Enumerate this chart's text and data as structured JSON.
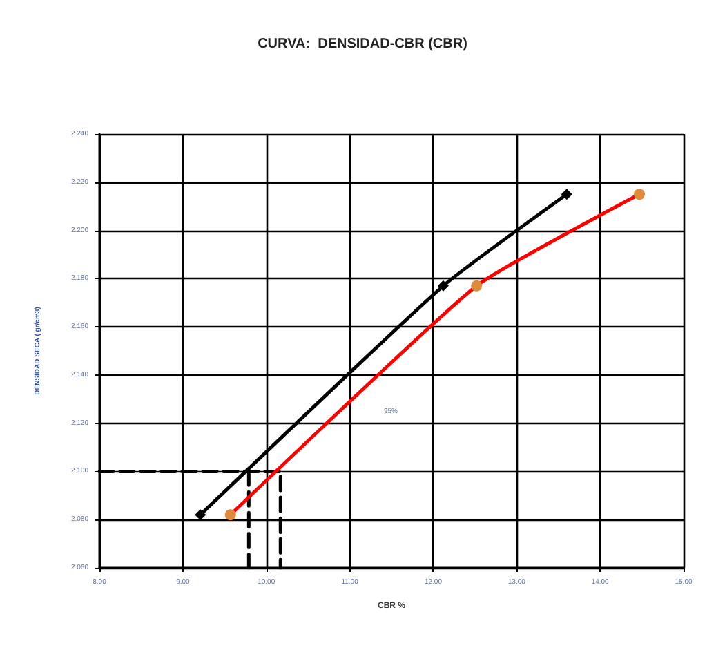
{
  "chart_data": {
    "type": "line",
    "title": "CURVA:  DENSIDAD-CBR (CBR)",
    "xlabel": "CBR %",
    "ylabel": "DENSIDAD SECA ( gr/cm3)",
    "annotations": [
      "95%"
    ],
    "series": [
      {
        "color": "#000000",
        "marker": "diamond",
        "x": [
          9.21,
          12.12,
          13.6
        ],
        "values": [
          2.082,
          2.177,
          2.215
        ]
      },
      {
        "color": "#ff0000",
        "marker": "circle",
        "colors": [
          "#e08a3c",
          "#e08a3c",
          "#e08a3c"
        ],
        "x": [
          9.57,
          12.52,
          14.47
        ],
        "values": [
          2.082,
          2.177,
          2.215
        ]
      },
      {
        "color": "#000000",
        "marker": "none",
        "line_style": "dashed",
        "x": [
          8,
          10.17,
          10.17
        ],
        "values": [
          2.1,
          2.1,
          2.06
        ]
      },
      {
        "color": "#000000",
        "marker": "none",
        "line_style": "dashed",
        "x": [
          9.79,
          9.79
        ],
        "values": [
          2.1,
          2.06
        ]
      }
    ],
    "xlim": [
      8,
      15
    ],
    "ylim": [
      2.06,
      2.24
    ],
    "xticks": [
      {
        "value": 8,
        "label": "8.00"
      },
      {
        "value": 9,
        "label": "9.00"
      },
      {
        "value": 10,
        "label": "10.00"
      },
      {
        "value": 11,
        "label": "11.00"
      },
      {
        "value": 12,
        "label": "12.00"
      },
      {
        "value": 13,
        "label": "13.00"
      },
      {
        "value": 14,
        "label": "14.00"
      },
      {
        "value": 15,
        "label": "15.00"
      }
    ],
    "yticks": [
      {
        "value": 2.06,
        "label": "2.060"
      },
      {
        "value": 2.08,
        "label": "2.080"
      },
      {
        "value": 2.1,
        "label": "2.100"
      },
      {
        "value": 2.12,
        "label": "2.120"
      },
      {
        "value": 2.14,
        "label": "2.140"
      },
      {
        "value": 2.16,
        "label": "2.160"
      },
      {
        "value": 2.18,
        "label": "2.180"
      },
      {
        "value": 2.2,
        "label": "2.200"
      },
      {
        "value": 2.22,
        "label": "2.220"
      },
      {
        "value": 2.24,
        "label": "2.240"
      }
    ],
    "grid": true
  }
}
